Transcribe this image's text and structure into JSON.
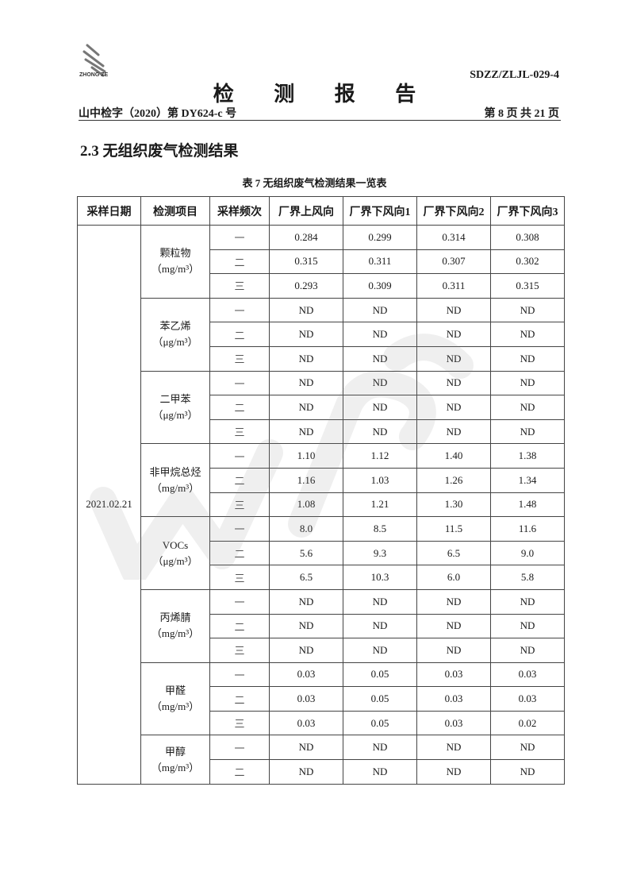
{
  "header": {
    "logo_text": "ZHONG ZE",
    "doc_code": "SDZZ/ZLJL-029-4",
    "title": "检 测 报 告",
    "report_no": "山中检字（2020）第 DY624-c 号",
    "page_info": "第 8 页  共 21 页"
  },
  "section_title": "2.3 无组织废气检测结果",
  "table_caption": "表 7   无组织废气检测结果一览表",
  "table": {
    "headers": [
      "采样日期",
      "检测项目",
      "采样频次",
      "厂界上风向",
      "厂界下风向1",
      "厂界下风向2",
      "厂界下风向3"
    ],
    "date": "2021.02.21",
    "groups": [
      {
        "item": "颗粒物",
        "unit": "（mg/m³）",
        "rows": [
          [
            "一",
            "0.284",
            "0.299",
            "0.314",
            "0.308"
          ],
          [
            "二",
            "0.315",
            "0.311",
            "0.307",
            "0.302"
          ],
          [
            "三",
            "0.293",
            "0.309",
            "0.311",
            "0.315"
          ]
        ]
      },
      {
        "item": "苯乙烯",
        "unit": "（μg/m³）",
        "rows": [
          [
            "一",
            "ND",
            "ND",
            "ND",
            "ND"
          ],
          [
            "二",
            "ND",
            "ND",
            "ND",
            "ND"
          ],
          [
            "三",
            "ND",
            "ND",
            "ND",
            "ND"
          ]
        ]
      },
      {
        "item": "二甲苯",
        "unit": "（μg/m³）",
        "rows": [
          [
            "一",
            "ND",
            "ND",
            "ND",
            "ND"
          ],
          [
            "二",
            "ND",
            "ND",
            "ND",
            "ND"
          ],
          [
            "三",
            "ND",
            "ND",
            "ND",
            "ND"
          ]
        ]
      },
      {
        "item": "非甲烷总烃",
        "unit": "（mg/m³）",
        "rows": [
          [
            "一",
            "1.10",
            "1.12",
            "1.40",
            "1.38"
          ],
          [
            "二",
            "1.16",
            "1.03",
            "1.26",
            "1.34"
          ],
          [
            "三",
            "1.08",
            "1.21",
            "1.30",
            "1.48"
          ]
        ]
      },
      {
        "item": "VOCs",
        "unit": "（μg/m³）",
        "rows": [
          [
            "一",
            "8.0",
            "8.5",
            "11.5",
            "11.6"
          ],
          [
            "二",
            "5.6",
            "9.3",
            "6.5",
            "9.0"
          ],
          [
            "三",
            "6.5",
            "10.3",
            "6.0",
            "5.8"
          ]
        ]
      },
      {
        "item": "丙烯腈",
        "unit": "（mg/m³）",
        "rows": [
          [
            "一",
            "ND",
            "ND",
            "ND",
            "ND"
          ],
          [
            "二",
            "ND",
            "ND",
            "ND",
            "ND"
          ],
          [
            "三",
            "ND",
            "ND",
            "ND",
            "ND"
          ]
        ]
      },
      {
        "item": "甲醛",
        "unit": "（mg/m³）",
        "rows": [
          [
            "一",
            "0.03",
            "0.05",
            "0.03",
            "0.03"
          ],
          [
            "二",
            "0.03",
            "0.05",
            "0.03",
            "0.03"
          ],
          [
            "三",
            "0.03",
            "0.05",
            "0.03",
            "0.02"
          ]
        ]
      },
      {
        "item": "甲醇",
        "unit": "（mg/m³）",
        "rows": [
          [
            "一",
            "ND",
            "ND",
            "ND",
            "ND"
          ],
          [
            "二",
            "ND",
            "ND",
            "ND",
            "ND"
          ]
        ]
      }
    ]
  }
}
